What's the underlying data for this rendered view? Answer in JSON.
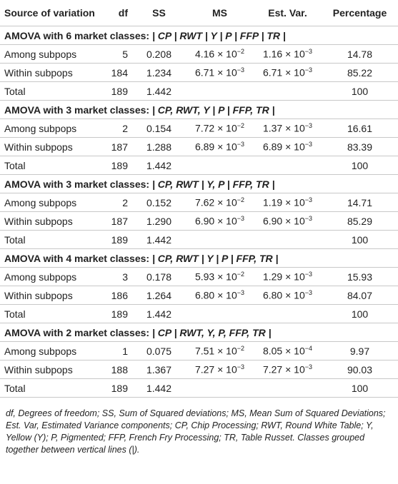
{
  "header": {
    "source": "Source of variation",
    "df": "df",
    "ss": "SS",
    "ms": "MS",
    "est_var": "Est. Var.",
    "percentage": "Percentage"
  },
  "sections": [
    {
      "heading": {
        "prefix": "AMOVA with 6 market classes:",
        "groups": "| CP | RWT | Y | P | FFP | TR |"
      },
      "rows": [
        {
          "source": "Among subpops",
          "df": "5",
          "ss": "0.208",
          "ms": {
            "base": "4.16 × 10",
            "exp": "−2"
          },
          "est_var": {
            "base": "1.16 × 10",
            "exp": "−3"
          },
          "percentage": "14.78"
        },
        {
          "source": "Within subpops",
          "df": "184",
          "ss": "1.234",
          "ms": {
            "base": "6.71 × 10",
            "exp": "−3"
          },
          "est_var": {
            "base": "6.71 × 10",
            "exp": "−3"
          },
          "percentage": "85.22"
        },
        {
          "source": "Total",
          "df": "189",
          "ss": "1.442",
          "percentage": "100"
        }
      ]
    },
    {
      "heading": {
        "prefix": "AMOVA with 3 market classes:",
        "groups": "| CP, RWT, Y | P | FFP, TR |"
      },
      "rows": [
        {
          "source": "Among subpops",
          "df": "2",
          "ss": "0.154",
          "ms": {
            "base": "7.72 × 10",
            "exp": "−2"
          },
          "est_var": {
            "base": "1.37 × 10",
            "exp": "−3"
          },
          "percentage": "16.61"
        },
        {
          "source": "Within subpops",
          "df": "187",
          "ss": "1.288",
          "ms": {
            "base": "6.89 × 10",
            "exp": "−3"
          },
          "est_var": {
            "base": "6.89 × 10",
            "exp": "−3"
          },
          "percentage": "83.39"
        },
        {
          "source": "Total",
          "df": "189",
          "ss": "1.442",
          "percentage": "100"
        }
      ]
    },
    {
      "heading": {
        "prefix": "AMOVA with 3 market classes:",
        "groups": "| CP, RWT | Y, P | FFP, TR |"
      },
      "rows": [
        {
          "source": "Among subpops",
          "df": "2",
          "ss": "0.152",
          "ms": {
            "base": "7.62 × 10",
            "exp": "−2"
          },
          "est_var": {
            "base": "1.19 × 10",
            "exp": "−3"
          },
          "percentage": "14.71"
        },
        {
          "source": "Within subpops",
          "df": "187",
          "ss": "1.290",
          "ms": {
            "base": "6.90 × 10",
            "exp": "−3"
          },
          "est_var": {
            "base": "6.90 × 10",
            "exp": "−3"
          },
          "percentage": "85.29"
        },
        {
          "source": "Total",
          "df": "189",
          "ss": "1.442",
          "percentage": "100"
        }
      ]
    },
    {
      "heading": {
        "prefix": "AMOVA with 4 market classes:",
        "groups": "| CP, RWT | Y | P | FFP, TR |"
      },
      "rows": [
        {
          "source": "Among subpops",
          "df": "3",
          "ss": "0.178",
          "ms": {
            "base": "5.93 × 10",
            "exp": "−2"
          },
          "est_var": {
            "base": "1.29 × 10",
            "exp": "−3"
          },
          "percentage": "15.93"
        },
        {
          "source": "Within subpops",
          "df": "186",
          "ss": "1.264",
          "ms": {
            "base": "6.80 × 10",
            "exp": "−3"
          },
          "est_var": {
            "base": "6.80 × 10",
            "exp": "−3"
          },
          "percentage": "84.07"
        },
        {
          "source": "Total",
          "df": "189",
          "ss": "1.442",
          "percentage": "100"
        }
      ]
    },
    {
      "heading": {
        "prefix": "AMOVA with 2 market classes:",
        "groups": "| CP | RWT, Y, P, FFP, TR |"
      },
      "rows": [
        {
          "source": "Among subpops",
          "df": "1",
          "ss": "0.075",
          "ms": {
            "base": "7.51 × 10",
            "exp": "−2"
          },
          "est_var": {
            "base": "8.05 × 10",
            "exp": "−4"
          },
          "percentage": "9.97"
        },
        {
          "source": "Within subpops",
          "df": "188",
          "ss": "1.367",
          "ms": {
            "base": "7.27 × 10",
            "exp": "−3"
          },
          "est_var": {
            "base": "7.27 × 10",
            "exp": "−3"
          },
          "percentage": "90.03"
        },
        {
          "source": "Total",
          "df": "189",
          "ss": "1.442",
          "percentage": "100"
        }
      ]
    }
  ],
  "footnote": "df, Degrees of freedom; SS, Sum of Squared deviations; MS, Mean Sum of Squared Deviations; Est. Var, Estimated Variance components; CP, Chip Processing; RWT, Round White Table; Y, Yellow (Y); P, Pigmented; FFP, French Fry Processing; TR, Table Russet. Classes grouped together between vertical lines (|)."
}
